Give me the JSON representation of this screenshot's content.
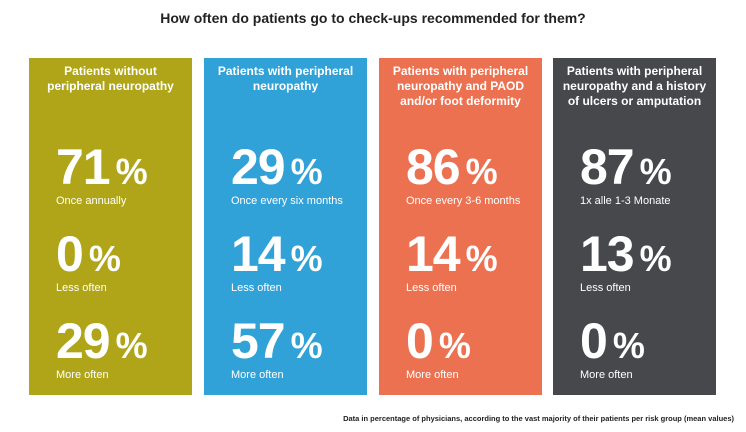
{
  "title": "How often do patients go to check-ups recommended for them?",
  "footnote": "Data in percentage of physicians, according to the vast majority of their patients per risk group (mean values)",
  "chart_data": {
    "type": "table",
    "title": "How often do patients go to check-ups recommended for them?",
    "unit": "%",
    "groups": [
      {
        "name": "Patients without peripheral neuropathy",
        "color": "#b0a518",
        "stats": [
          {
            "value": 71,
            "label": "Once annually"
          },
          {
            "value": 0,
            "label": "Less often"
          },
          {
            "value": 29,
            "label": "More often"
          }
        ]
      },
      {
        "name": "Patients with peripheral neuropathy",
        "color": "#31a2d8",
        "stats": [
          {
            "value": 29,
            "label": "Once every six months"
          },
          {
            "value": 14,
            "label": "Less often"
          },
          {
            "value": 57,
            "label": "More often"
          }
        ]
      },
      {
        "name": "Patients with peripheral neuropathy and PAOD and/or foot deformity",
        "color": "#ec7151",
        "stats": [
          {
            "value": 86,
            "label": "Once every 3-6 months"
          },
          {
            "value": 14,
            "label": "Less often"
          },
          {
            "value": 0,
            "label": "More often"
          }
        ]
      },
      {
        "name": "Patients with peripheral neuropathy and a history of ulcers or amputation",
        "color": "#46484b",
        "stats": [
          {
            "value": 87,
            "label": "1x alle 1-3 Monate"
          },
          {
            "value": 13,
            "label": "Less often"
          },
          {
            "value": 0,
            "label": "More often"
          }
        ]
      }
    ]
  }
}
